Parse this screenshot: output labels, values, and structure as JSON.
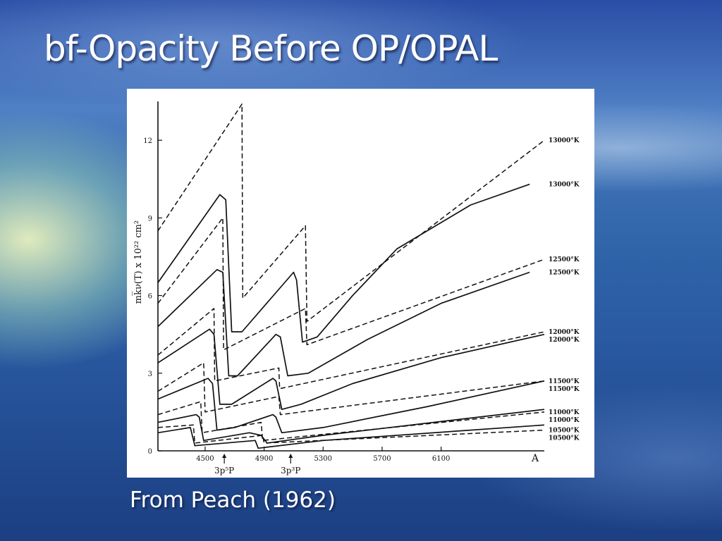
{
  "slide": {
    "title": "bf-Opacity Before OP/OPAL",
    "caption": "From  Peach (1962)"
  },
  "colors": {
    "curve": "#111111",
    "axis": "#111111",
    "panel": "#ffffff"
  },
  "chart_data": {
    "type": "line",
    "title": "",
    "ylabel": "mk̅ν(T) x 10²² cm²",
    "xlabel": "A",
    "xlim": [
      4180,
      6800
    ],
    "ylim": [
      0,
      13.5
    ],
    "x_ticks": [
      "4500",
      "4900",
      "5300",
      "5700",
      "6100"
    ],
    "x_tick_values": [
      4500,
      4900,
      5300,
      5700,
      6100
    ],
    "y_ticks": [
      "0",
      "3",
      "6",
      "9",
      "12"
    ],
    "y_tick_values": [
      0,
      3,
      6,
      9,
      12
    ],
    "edge_markers": [
      {
        "label": "3p⁵P",
        "x": 4630
      },
      {
        "label": "3p³P",
        "x": 5080
      }
    ],
    "series": [
      {
        "name": "13000°K",
        "style": "dashed",
        "points": [
          [
            4180,
            8.5
          ],
          [
            4750,
            13.4
          ],
          [
            4755,
            5.9
          ],
          [
            5180,
            8.7
          ],
          [
            5190,
            5.0
          ],
          [
            6800,
            12.0
          ]
        ]
      },
      {
        "name": "13000°K",
        "style": "solid",
        "points": [
          [
            4180,
            6.5
          ],
          [
            4600,
            9.9
          ],
          [
            4640,
            9.7
          ],
          [
            4680,
            4.6
          ],
          [
            4750,
            4.6
          ],
          [
            5100,
            6.9
          ],
          [
            5120,
            6.6
          ],
          [
            5160,
            4.2
          ],
          [
            5260,
            4.4
          ],
          [
            5500,
            6.0
          ],
          [
            5800,
            7.8
          ],
          [
            6300,
            9.5
          ],
          [
            6700,
            10.3
          ]
        ]
      },
      {
        "name": "12500°K",
        "style": "dashed",
        "points": [
          [
            4180,
            5.7
          ],
          [
            4620,
            9.0
          ],
          [
            4625,
            3.9
          ],
          [
            5180,
            5.5
          ],
          [
            5190,
            4.1
          ],
          [
            6800,
            7.4
          ]
        ]
      },
      {
        "name": "12500°K",
        "style": "solid",
        "points": [
          [
            4180,
            4.8
          ],
          [
            4580,
            7.0
          ],
          [
            4620,
            6.9
          ],
          [
            4660,
            2.9
          ],
          [
            4720,
            2.9
          ],
          [
            4980,
            4.5
          ],
          [
            5010,
            4.4
          ],
          [
            5060,
            2.9
          ],
          [
            5200,
            3.0
          ],
          [
            5600,
            4.3
          ],
          [
            6100,
            5.7
          ],
          [
            6700,
            6.9
          ]
        ]
      },
      {
        "name": "12000°K",
        "style": "dashed",
        "points": [
          [
            4180,
            3.7
          ],
          [
            4560,
            5.5
          ],
          [
            4565,
            2.7
          ],
          [
            5000,
            3.2
          ],
          [
            5005,
            2.4
          ],
          [
            6800,
            4.6
          ]
        ]
      },
      {
        "name": "12000°K",
        "style": "solid",
        "points": [
          [
            4180,
            3.4
          ],
          [
            4530,
            4.7
          ],
          [
            4560,
            4.5
          ],
          [
            4600,
            1.8
          ],
          [
            4680,
            1.8
          ],
          [
            4960,
            2.8
          ],
          [
            4980,
            2.7
          ],
          [
            5020,
            1.6
          ],
          [
            5150,
            1.8
          ],
          [
            5500,
            2.6
          ],
          [
            6100,
            3.6
          ],
          [
            6800,
            4.5
          ]
        ]
      },
      {
        "name": "11500°K",
        "style": "dashed",
        "points": [
          [
            4180,
            2.3
          ],
          [
            4490,
            3.4
          ],
          [
            4500,
            1.5
          ],
          [
            5000,
            2.1
          ],
          [
            5010,
            1.4
          ],
          [
            6800,
            2.7
          ]
        ]
      },
      {
        "name": "11500°K",
        "style": "solid",
        "points": [
          [
            4180,
            2.0
          ],
          [
            4520,
            2.8
          ],
          [
            4550,
            2.6
          ],
          [
            4580,
            0.8
          ],
          [
            4700,
            0.9
          ],
          [
            4960,
            1.4
          ],
          [
            4980,
            1.3
          ],
          [
            5020,
            0.7
          ],
          [
            5300,
            0.9
          ],
          [
            6000,
            1.7
          ],
          [
            6800,
            2.7
          ]
        ]
      },
      {
        "name": "11000°K",
        "style": "dashed",
        "points": [
          [
            4180,
            1.4
          ],
          [
            4470,
            1.9
          ],
          [
            4480,
            0.7
          ],
          [
            4880,
            1.1
          ],
          [
            4890,
            0.4
          ],
          [
            6800,
            1.5
          ]
        ]
      },
      {
        "name": "11000°K",
        "style": "solid",
        "points": [
          [
            4180,
            1.1
          ],
          [
            4440,
            1.4
          ],
          [
            4460,
            1.3
          ],
          [
            4490,
            0.4
          ],
          [
            4800,
            0.7
          ],
          [
            4880,
            0.6
          ],
          [
            4920,
            0.3
          ],
          [
            5300,
            0.6
          ],
          [
            6800,
            1.6
          ]
        ]
      },
      {
        "name": "10500°K",
        "style": "dashed",
        "points": [
          [
            4180,
            0.9
          ],
          [
            4420,
            1.0
          ],
          [
            4430,
            0.3
          ],
          [
            4890,
            0.6
          ],
          [
            4900,
            0.3
          ],
          [
            6800,
            0.8
          ]
        ]
      },
      {
        "name": "10500°K",
        "style": "solid",
        "points": [
          [
            4180,
            0.7
          ],
          [
            4400,
            0.9
          ],
          [
            4430,
            0.2
          ],
          [
            4840,
            0.4
          ],
          [
            4860,
            0.1
          ],
          [
            5300,
            0.4
          ],
          [
            6800,
            1.0
          ]
        ]
      }
    ],
    "legend_placement": "right-inline",
    "grid": false
  }
}
